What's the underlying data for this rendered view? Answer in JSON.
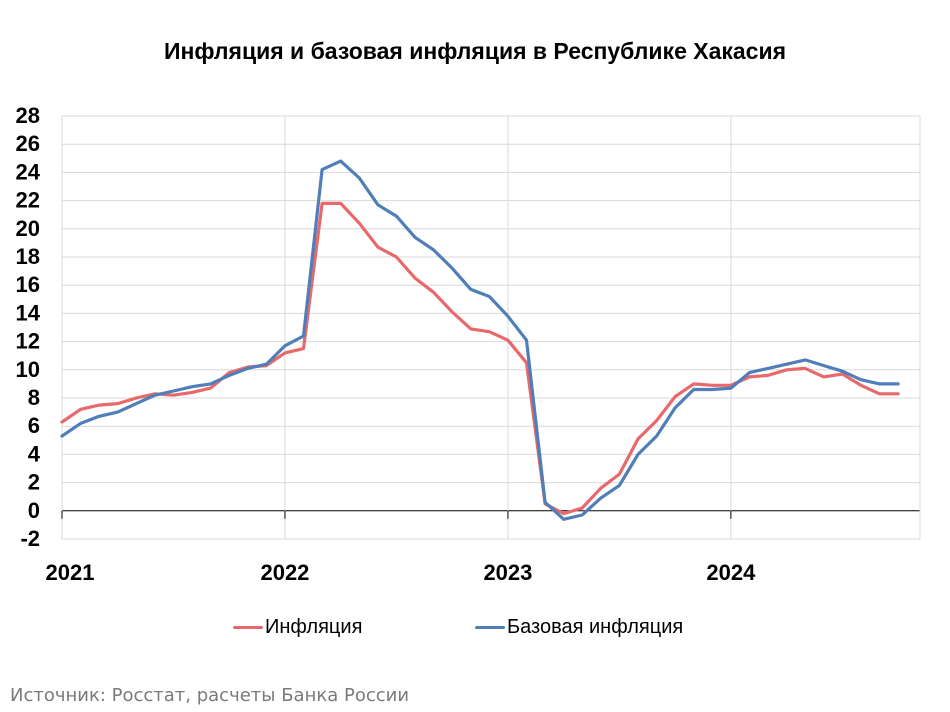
{
  "chart_data": {
    "type": "line",
    "title": "Инфляция и базовая инфляция в Республике Хакасия",
    "xlabel": "",
    "ylabel": "",
    "ylim": [
      -2,
      28
    ],
    "yticks": [
      -2,
      0,
      2,
      4,
      6,
      8,
      10,
      12,
      14,
      16,
      18,
      20,
      22,
      24,
      26,
      28
    ],
    "xticks": [
      "2021",
      "2022",
      "2023",
      "2024"
    ],
    "grid": true,
    "legend_position": "bottom",
    "x": [
      "2021-01",
      "2021-02",
      "2021-03",
      "2021-04",
      "2021-05",
      "2021-06",
      "2021-07",
      "2021-08",
      "2021-09",
      "2021-10",
      "2021-11",
      "2021-12",
      "2022-01",
      "2022-02",
      "2022-03",
      "2022-04",
      "2022-05",
      "2022-06",
      "2022-07",
      "2022-08",
      "2022-09",
      "2022-10",
      "2022-11",
      "2022-12",
      "2023-01",
      "2023-02",
      "2023-03",
      "2023-04",
      "2023-05",
      "2023-06",
      "2023-07",
      "2023-08",
      "2023-09",
      "2023-10",
      "2023-11",
      "2023-12",
      "2024-01",
      "2024-02",
      "2024-03",
      "2024-04",
      "2024-05",
      "2024-06",
      "2024-07",
      "2024-08",
      "2024-09",
      "2024-10"
    ],
    "series": [
      {
        "name": "Инфляция",
        "color": "#e8696b",
        "values": [
          6.3,
          7.2,
          7.5,
          7.6,
          8.0,
          8.3,
          8.2,
          8.4,
          8.7,
          9.8,
          10.2,
          10.3,
          11.2,
          11.5,
          21.8,
          21.8,
          20.4,
          18.7,
          18.0,
          16.5,
          15.5,
          14.1,
          12.9,
          12.7,
          12.1,
          10.5,
          0.5,
          -0.2,
          0.2,
          1.6,
          2.6,
          5.1,
          6.4,
          8.1,
          9.0,
          8.9,
          8.9,
          9.5,
          9.6,
          10.0,
          10.1,
          9.5,
          9.7,
          8.9,
          8.3,
          8.3
        ]
      },
      {
        "name": "Базовая инфляция",
        "color": "#4f7eb8",
        "values": [
          5.3,
          6.2,
          6.7,
          7.0,
          7.6,
          8.2,
          8.5,
          8.8,
          9.0,
          9.6,
          10.1,
          10.4,
          11.7,
          12.4,
          24.2,
          24.8,
          23.6,
          21.7,
          20.9,
          19.4,
          18.5,
          17.2,
          15.7,
          15.2,
          13.8,
          12.1,
          0.6,
          -0.6,
          -0.3,
          0.9,
          1.8,
          4.0,
          5.3,
          7.3,
          8.6,
          8.6,
          8.7,
          9.8,
          10.1,
          10.4,
          10.7,
          10.3,
          9.9,
          9.3,
          9.0,
          9.0
        ]
      }
    ]
  },
  "source_text": "Источник: Росстат, расчеты Банка России"
}
